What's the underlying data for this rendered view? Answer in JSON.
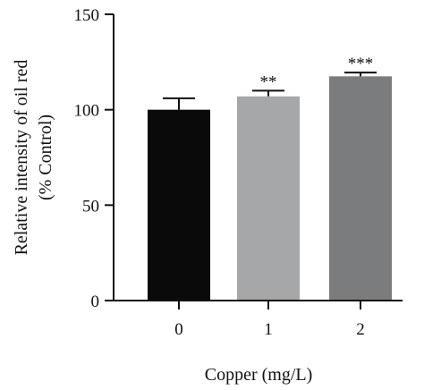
{
  "chart_data": {
    "type": "bar",
    "title": "",
    "xlabel": "Copper (mg/L)",
    "ylabel_lines": [
      "Relative intensity of oil red",
      "(% Control)"
    ],
    "categories": [
      "0",
      "1",
      "2"
    ],
    "values": [
      100,
      107,
      117.5
    ],
    "errors": [
      6,
      3,
      2
    ],
    "significance": [
      "",
      "**",
      "***"
    ],
    "bar_colors": [
      "#0a0a0a",
      "#a6a7a9",
      "#7b7c7e"
    ],
    "ylim": [
      0,
      150
    ],
    "yticks": [
      "0",
      "50",
      "100",
      "150"
    ],
    "grid": false,
    "legend": "none"
  }
}
